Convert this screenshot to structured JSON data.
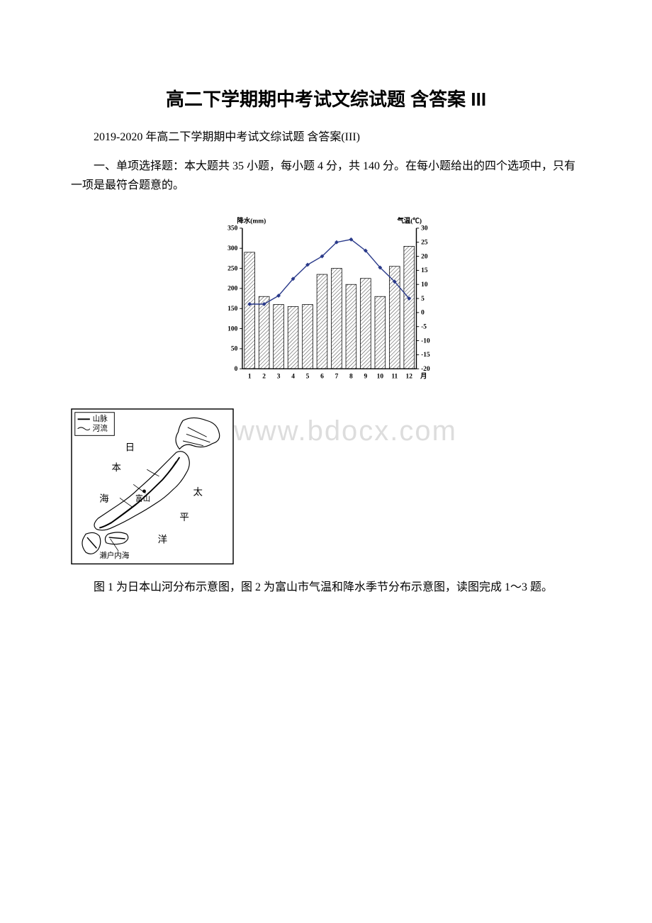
{
  "title": "高二下学期期中考试文综试题 含答案 III",
  "subtitle": "2019-2020 年高二下学期期中考试文综试题 含答案(III)",
  "instruction": "一、单项选择题：本大题共 35 小题，每小题 4 分，共 140 分。在每小题给出的四个选项中，只有一项是最符合题意的。",
  "watermark": "www.bdocx.com",
  "question_text": "图 1 为日本山河分布示意图，图 2 为富山市气温和降水季节分布示意图，读图完成 1～3 题。",
  "chart": {
    "type": "bar_line_combo",
    "precip_label": "降水(mm)",
    "temp_label": "气温(℃)",
    "x_label": "月",
    "months": [
      "1",
      "2",
      "3",
      "4",
      "5",
      "6",
      "7",
      "8",
      "9",
      "10",
      "11",
      "12"
    ],
    "precip_values": [
      290,
      180,
      160,
      155,
      160,
      235,
      250,
      210,
      225,
      180,
      255,
      305
    ],
    "temp_values": [
      3,
      3,
      6,
      12,
      17,
      20,
      25,
      26,
      22,
      16,
      11,
      5
    ],
    "precip_ylim": [
      0,
      350
    ],
    "precip_ytick_step": 50,
    "temp_ylim": [
      -20,
      30
    ],
    "temp_ytick_step": 5,
    "bar_fill": "#ffffff",
    "bar_hatch": "#333333",
    "line_color": "#2a3a8a",
    "marker_color": "#2a3a8a",
    "axis_color": "#000000",
    "background": "#ffffff",
    "font_size": 10
  },
  "map": {
    "legend_items": [
      "山脉",
      "河流"
    ],
    "labels": {
      "sea_japan_top": "日",
      "sea_japan_mid": "本",
      "sea_japan_bot": "海",
      "pacific_top": "太",
      "pacific_mid": "平",
      "pacific_bot": "洋",
      "toyama": "富山",
      "seto": "濑户内海"
    },
    "border_color": "#000000",
    "land_fill": "#ffffff",
    "line_color": "#000000",
    "font_size": 11
  }
}
